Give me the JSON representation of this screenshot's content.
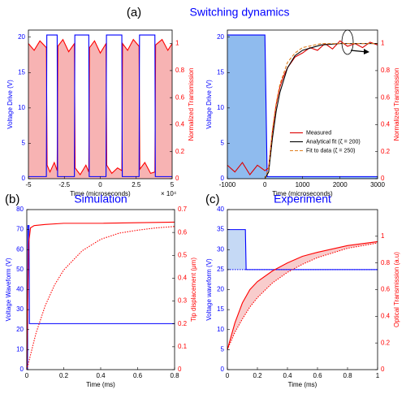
{
  "figure_a": {
    "label": "(a)",
    "title": "Switching dynamics"
  },
  "chart_data": [
    {
      "type": "line",
      "xlabel": "Time (microseconds)",
      "xlabel_multiplier": "× 10⁴",
      "ylabel": "Voltage Drive (V)",
      "y2label": "Normalized Transmission",
      "y_color": "#0000ff",
      "y2_color": "#ff0000",
      "xlim": [
        -5,
        5
      ],
      "xticks": [
        -5,
        -2.5,
        0,
        2.5,
        5
      ],
      "ylim": [
        0,
        21
      ],
      "yticks": [
        0,
        5,
        10,
        15,
        20
      ],
      "y2lim": [
        0,
        1.1
      ],
      "y2ticks": [
        0,
        0.2,
        0.4,
        0.6,
        0.8,
        1
      ],
      "series": [
        {
          "color": "#ff0000",
          "fill": "#f7b3b3",
          "axis": "y2",
          "x": [
            -5,
            -4.6,
            -4.2,
            -3.75,
            -3.7,
            -3.5,
            -3.2,
            -3.0,
            -2.95,
            -2.6,
            -2.2,
            -1.8,
            -1.75,
            -1.4,
            -1.0,
            -0.8,
            -0.75,
            -0.4,
            0,
            0.4,
            0.45,
            0.8,
            1.2,
            1.5,
            1.55,
            1.9,
            2.3,
            2.7,
            2.75,
            3.1,
            3.5,
            3.8,
            3.85,
            4.3,
            4.7,
            5
          ],
          "values": [
            1.0,
            0.95,
            1.02,
            0.97,
            0.1,
            0.05,
            0.12,
            0.06,
            0.98,
            1.03,
            0.94,
            1.0,
            0.08,
            0.03,
            0.1,
            0.05,
            0.97,
            1.02,
            0.93,
            1.0,
            0.1,
            0.04,
            0.08,
            0.06,
            1.0,
            0.95,
            1.03,
            0.98,
            0.07,
            0.12,
            0.04,
            0.05,
            0.99,
            1.03,
            0.95,
            1.0
          ]
        },
        {
          "color": "#0000ff",
          "x": [
            -5,
            -3.75,
            -3.72,
            -3.0,
            -2.97,
            -1.8,
            -1.77,
            -0.8,
            -0.77,
            0.4,
            0.43,
            1.5,
            1.53,
            2.7,
            2.73,
            3.8,
            3.83,
            5
          ],
          "values": [
            0.3,
            0.3,
            20.3,
            20.3,
            0.3,
            0.3,
            20.3,
            20.3,
            0.3,
            0.3,
            20.3,
            20.3,
            0.3,
            0.3,
            20.3,
            20.3,
            0.3,
            0.3
          ]
        }
      ]
    },
    {
      "type": "line",
      "xlabel": "Time (microseconds)",
      "ylabel": "Voltage Drive (V)",
      "y2label": "Normalized Transmission",
      "y_color": "#0000ff",
      "y2_color": "#ff0000",
      "legend": "center right",
      "xlim": [
        -1000,
        3000
      ],
      "xticks": [
        -1000,
        0,
        1000,
        2000,
        3000
      ],
      "ylim": [
        0,
        21
      ],
      "yticks": [
        0,
        5,
        10,
        15,
        20
      ],
      "y2lim": [
        0,
        1.1
      ],
      "y2ticks": [
        0,
        0.2,
        0.4,
        0.6,
        0.8,
        1
      ],
      "series": [
        {
          "color": "#0000ff",
          "fill": "#8fbbee",
          "x": [
            -1000,
            0,
            60,
            3000
          ],
          "values": [
            20.3,
            20.3,
            0.3,
            0.3
          ]
        },
        {
          "name": "Measured",
          "color": "#dd0000",
          "axis": "y2",
          "x": [
            -1000,
            -800,
            -600,
            -400,
            -200,
            0,
            100,
            200,
            300,
            400,
            500,
            600,
            800,
            1000,
            1200,
            1400,
            1600,
            1800,
            2000,
            2200,
            2400,
            2600,
            2800,
            3000
          ],
          "values": [
            0.1,
            0.05,
            0.12,
            0.03,
            0.1,
            0.06,
            0.08,
            0.35,
            0.55,
            0.68,
            0.76,
            0.82,
            0.9,
            0.93,
            0.97,
            0.95,
            1.0,
            0.96,
            1.02,
            0.98,
            1.0,
            0.97,
            1.01,
            0.99
          ]
        },
        {
          "name": "Analytical fit (ζ = 200)",
          "color": "#000000",
          "axis": "y2",
          "x": [
            0,
            100,
            200,
            300,
            400,
            600,
            800,
            1000,
            1500,
            2000,
            3000
          ],
          "values": [
            0,
            0.05,
            0.3,
            0.5,
            0.64,
            0.82,
            0.91,
            0.95,
            0.99,
            1.0,
            1.0
          ]
        },
        {
          "name": "Fit to data (ζ = 250)",
          "color": "#e08020",
          "dash": "dashed",
          "axis": "y2",
          "x": [
            0,
            100,
            200,
            300,
            400,
            600,
            800,
            1000,
            1500,
            2000,
            3000
          ],
          "values": [
            0,
            0.08,
            0.36,
            0.56,
            0.7,
            0.86,
            0.93,
            0.97,
            1.0,
            1.0,
            1.0
          ]
        }
      ]
    },
    {
      "type": "line",
      "label": "(b)",
      "title": "Simulation",
      "xlabel": "Time (ms)",
      "ylabel": "Voltage Waveform (V)",
      "y2label": "Tip displacement (μm)",
      "y_color": "#0000ff",
      "y2_color": "#ff0000",
      "xlim": [
        0,
        0.8
      ],
      "xticks": [
        0,
        0.2,
        0.4,
        0.6,
        0.8
      ],
      "ylim": [
        0,
        80
      ],
      "yticks": [
        0,
        10,
        20,
        30,
        40,
        50,
        60,
        70,
        80
      ],
      "y2lim": [
        0,
        0.7
      ],
      "y2ticks": [
        0,
        0.1,
        0.2,
        0.3,
        0.4,
        0.5,
        0.6,
        0.7
      ],
      "series": [
        {
          "color": "#0000ff",
          "x": [
            0,
            0.004,
            0.006,
            0.012,
            0.014,
            0.8
          ],
          "values": [
            0,
            0,
            72,
            72,
            23,
            23
          ]
        },
        {
          "color": "#ff0000",
          "axis": "y2",
          "x": [
            0,
            0.005,
            0.01,
            0.02,
            0.04,
            0.1,
            0.2,
            0.4,
            0.8
          ],
          "values": [
            0,
            0.3,
            0.55,
            0.62,
            0.63,
            0.635,
            0.64,
            0.64,
            0.645
          ]
        },
        {
          "color": "#ff0000",
          "dash": "dotted",
          "axis": "y2",
          "x": [
            0,
            0.05,
            0.1,
            0.15,
            0.2,
            0.3,
            0.4,
            0.5,
            0.6,
            0.7,
            0.8
          ],
          "values": [
            0,
            0.16,
            0.28,
            0.37,
            0.436,
            0.52,
            0.57,
            0.597,
            0.61,
            0.62,
            0.626
          ]
        }
      ]
    },
    {
      "type": "line",
      "label": "(c)",
      "title": "Experiment",
      "xlabel": "Time (ms)",
      "ylabel": "Voltage waveform (V)",
      "y2label": "Optical Transmission (a.u)",
      "y_color": "#0000ff",
      "y2_color": "#ff0000",
      "fill_between": true,
      "xlim": [
        0,
        1
      ],
      "xticks": [
        0,
        0.2,
        0.4,
        0.6,
        0.8,
        1
      ],
      "ylim": [
        0,
        40
      ],
      "yticks": [
        0,
        5,
        10,
        15,
        20,
        25,
        30,
        35,
        40
      ],
      "y2lim": [
        0,
        1.2
      ],
      "y2ticks": [
        0,
        0.2,
        0.4,
        0.6,
        0.8,
        1
      ],
      "series": [
        {
          "color": "#0000ff",
          "fill": "#c5d9f5",
          "x": [
            0,
            0.12,
            0.125,
            1
          ],
          "values": [
            35,
            35,
            25,
            25
          ]
        },
        {
          "color": "#0000ff",
          "dash": "dotted",
          "x": [
            0,
            1
          ],
          "values": [
            25,
            25
          ]
        },
        {
          "color": "#ff0000",
          "fill": "#f8cccc",
          "axis": "y2",
          "x": [
            0,
            0.05,
            0.1,
            0.15,
            0.2,
            0.3,
            0.4,
            0.5,
            0.6,
            0.8,
            1.0
          ],
          "values": [
            0.15,
            0.35,
            0.5,
            0.6,
            0.66,
            0.74,
            0.8,
            0.85,
            0.88,
            0.93,
            0.96
          ]
        },
        {
          "color": "#ff0000",
          "dash": "dotted",
          "axis": "y2",
          "x": [
            0,
            0.05,
            0.1,
            0.15,
            0.2,
            0.3,
            0.4,
            0.5,
            0.6,
            0.8,
            1.0
          ],
          "values": [
            0.15,
            0.28,
            0.38,
            0.47,
            0.54,
            0.65,
            0.73,
            0.79,
            0.84,
            0.91,
            0.95
          ]
        }
      ]
    }
  ]
}
